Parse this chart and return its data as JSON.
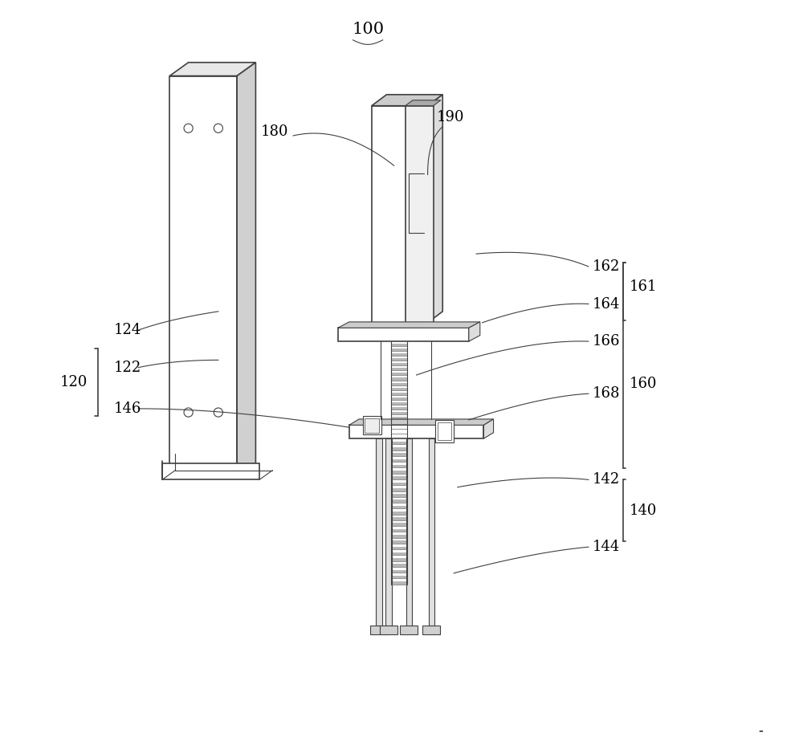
{
  "background_color": "#ffffff",
  "line_color": "#404040",
  "label_color": "#000000",
  "figsize": [
    10.0,
    9.34
  ],
  "dpi": 100
}
